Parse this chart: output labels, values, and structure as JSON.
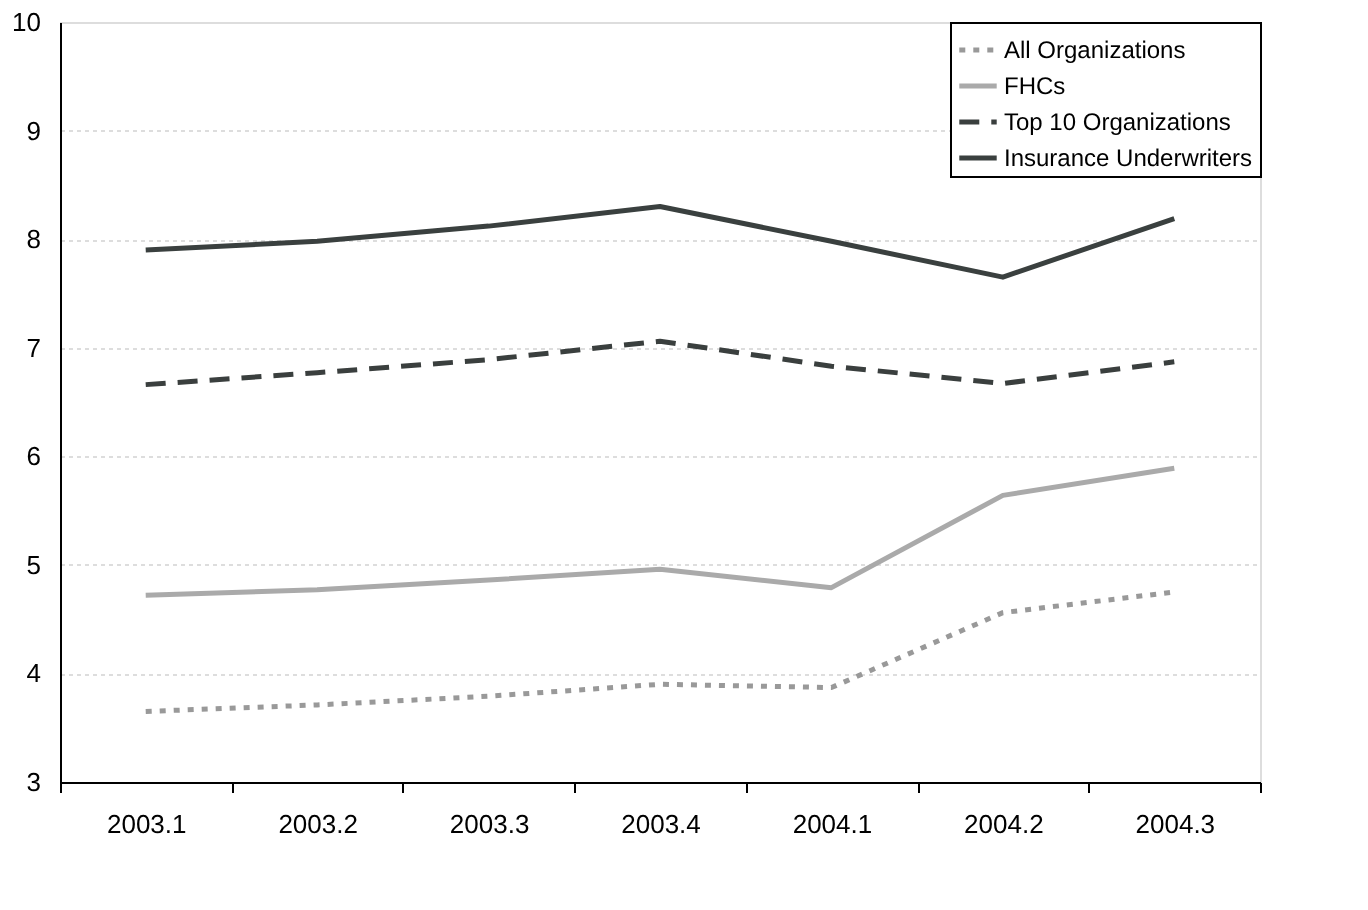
{
  "chart_data": {
    "type": "line",
    "categories": [
      "2003.1",
      "2003.2",
      "2003.3",
      "2003.4",
      "2004.1",
      "2004.2",
      "2004.3"
    ],
    "series": [
      {
        "name": "All Organizations",
        "color": "#999999",
        "line_style": "dotted",
        "values": [
          3.65,
          3.71,
          3.79,
          3.9,
          3.87,
          4.56,
          4.75
        ]
      },
      {
        "name": "FHCs",
        "color": "#aaaaaa",
        "line_style": "solid",
        "values": [
          4.72,
          4.77,
          4.86,
          4.96,
          4.79,
          5.64,
          5.89
        ]
      },
      {
        "name": "Top 10 Organizations",
        "color": "#3a3f3e",
        "line_style": "dashed",
        "values": [
          6.66,
          6.77,
          6.89,
          7.06,
          6.83,
          6.67,
          6.87
        ]
      },
      {
        "name": "Insurance Underwriters",
        "color": "#3a403f",
        "line_style": "solid",
        "values": [
          7.9,
          7.98,
          8.12,
          8.3,
          7.98,
          7.65,
          8.19
        ]
      }
    ],
    "ylim": [
      3,
      10
    ],
    "yticks": [
      3,
      4,
      5,
      6,
      7,
      8,
      9,
      10
    ],
    "grid": "y",
    "legend": "top right",
    "marker": "none"
  }
}
